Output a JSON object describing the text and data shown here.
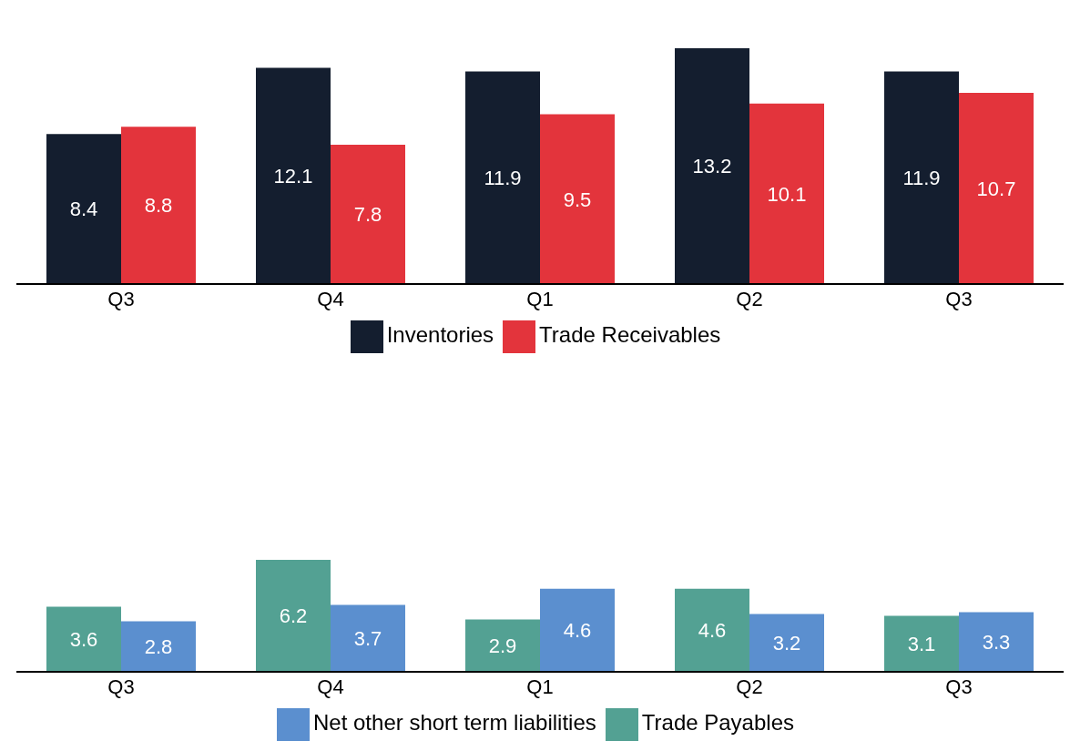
{
  "chart_data": [
    {
      "type": "bar",
      "categories": [
        "Q3",
        "Q4",
        "Q1",
        "Q2",
        "Q3"
      ],
      "series": [
        {
          "name": "Inventories",
          "color": "#141e2f",
          "values": [
            8.4,
            12.1,
            11.9,
            13.2,
            11.9
          ]
        },
        {
          "name": "Trade Receivables",
          "color": "#e3343c",
          "values": [
            8.8,
            7.8,
            9.5,
            10.1,
            10.7
          ]
        }
      ],
      "data_labels": true,
      "legend": "bottom",
      "grid": false
    },
    {
      "type": "bar",
      "categories": [
        "Q3",
        "Q4",
        "Q1",
        "Q2",
        "Q3"
      ],
      "series": [
        {
          "name": "Trade Payables",
          "color": "#53a193",
          "values": [
            3.6,
            6.2,
            2.9,
            4.6,
            3.1
          ]
        },
        {
          "name": "Net other short term liabilities",
          "color": "#5b8fcf",
          "values": [
            2.8,
            3.7,
            4.6,
            3.2,
            3.3
          ]
        }
      ],
      "data_labels": true,
      "legend": "bottom",
      "grid": false
    }
  ]
}
